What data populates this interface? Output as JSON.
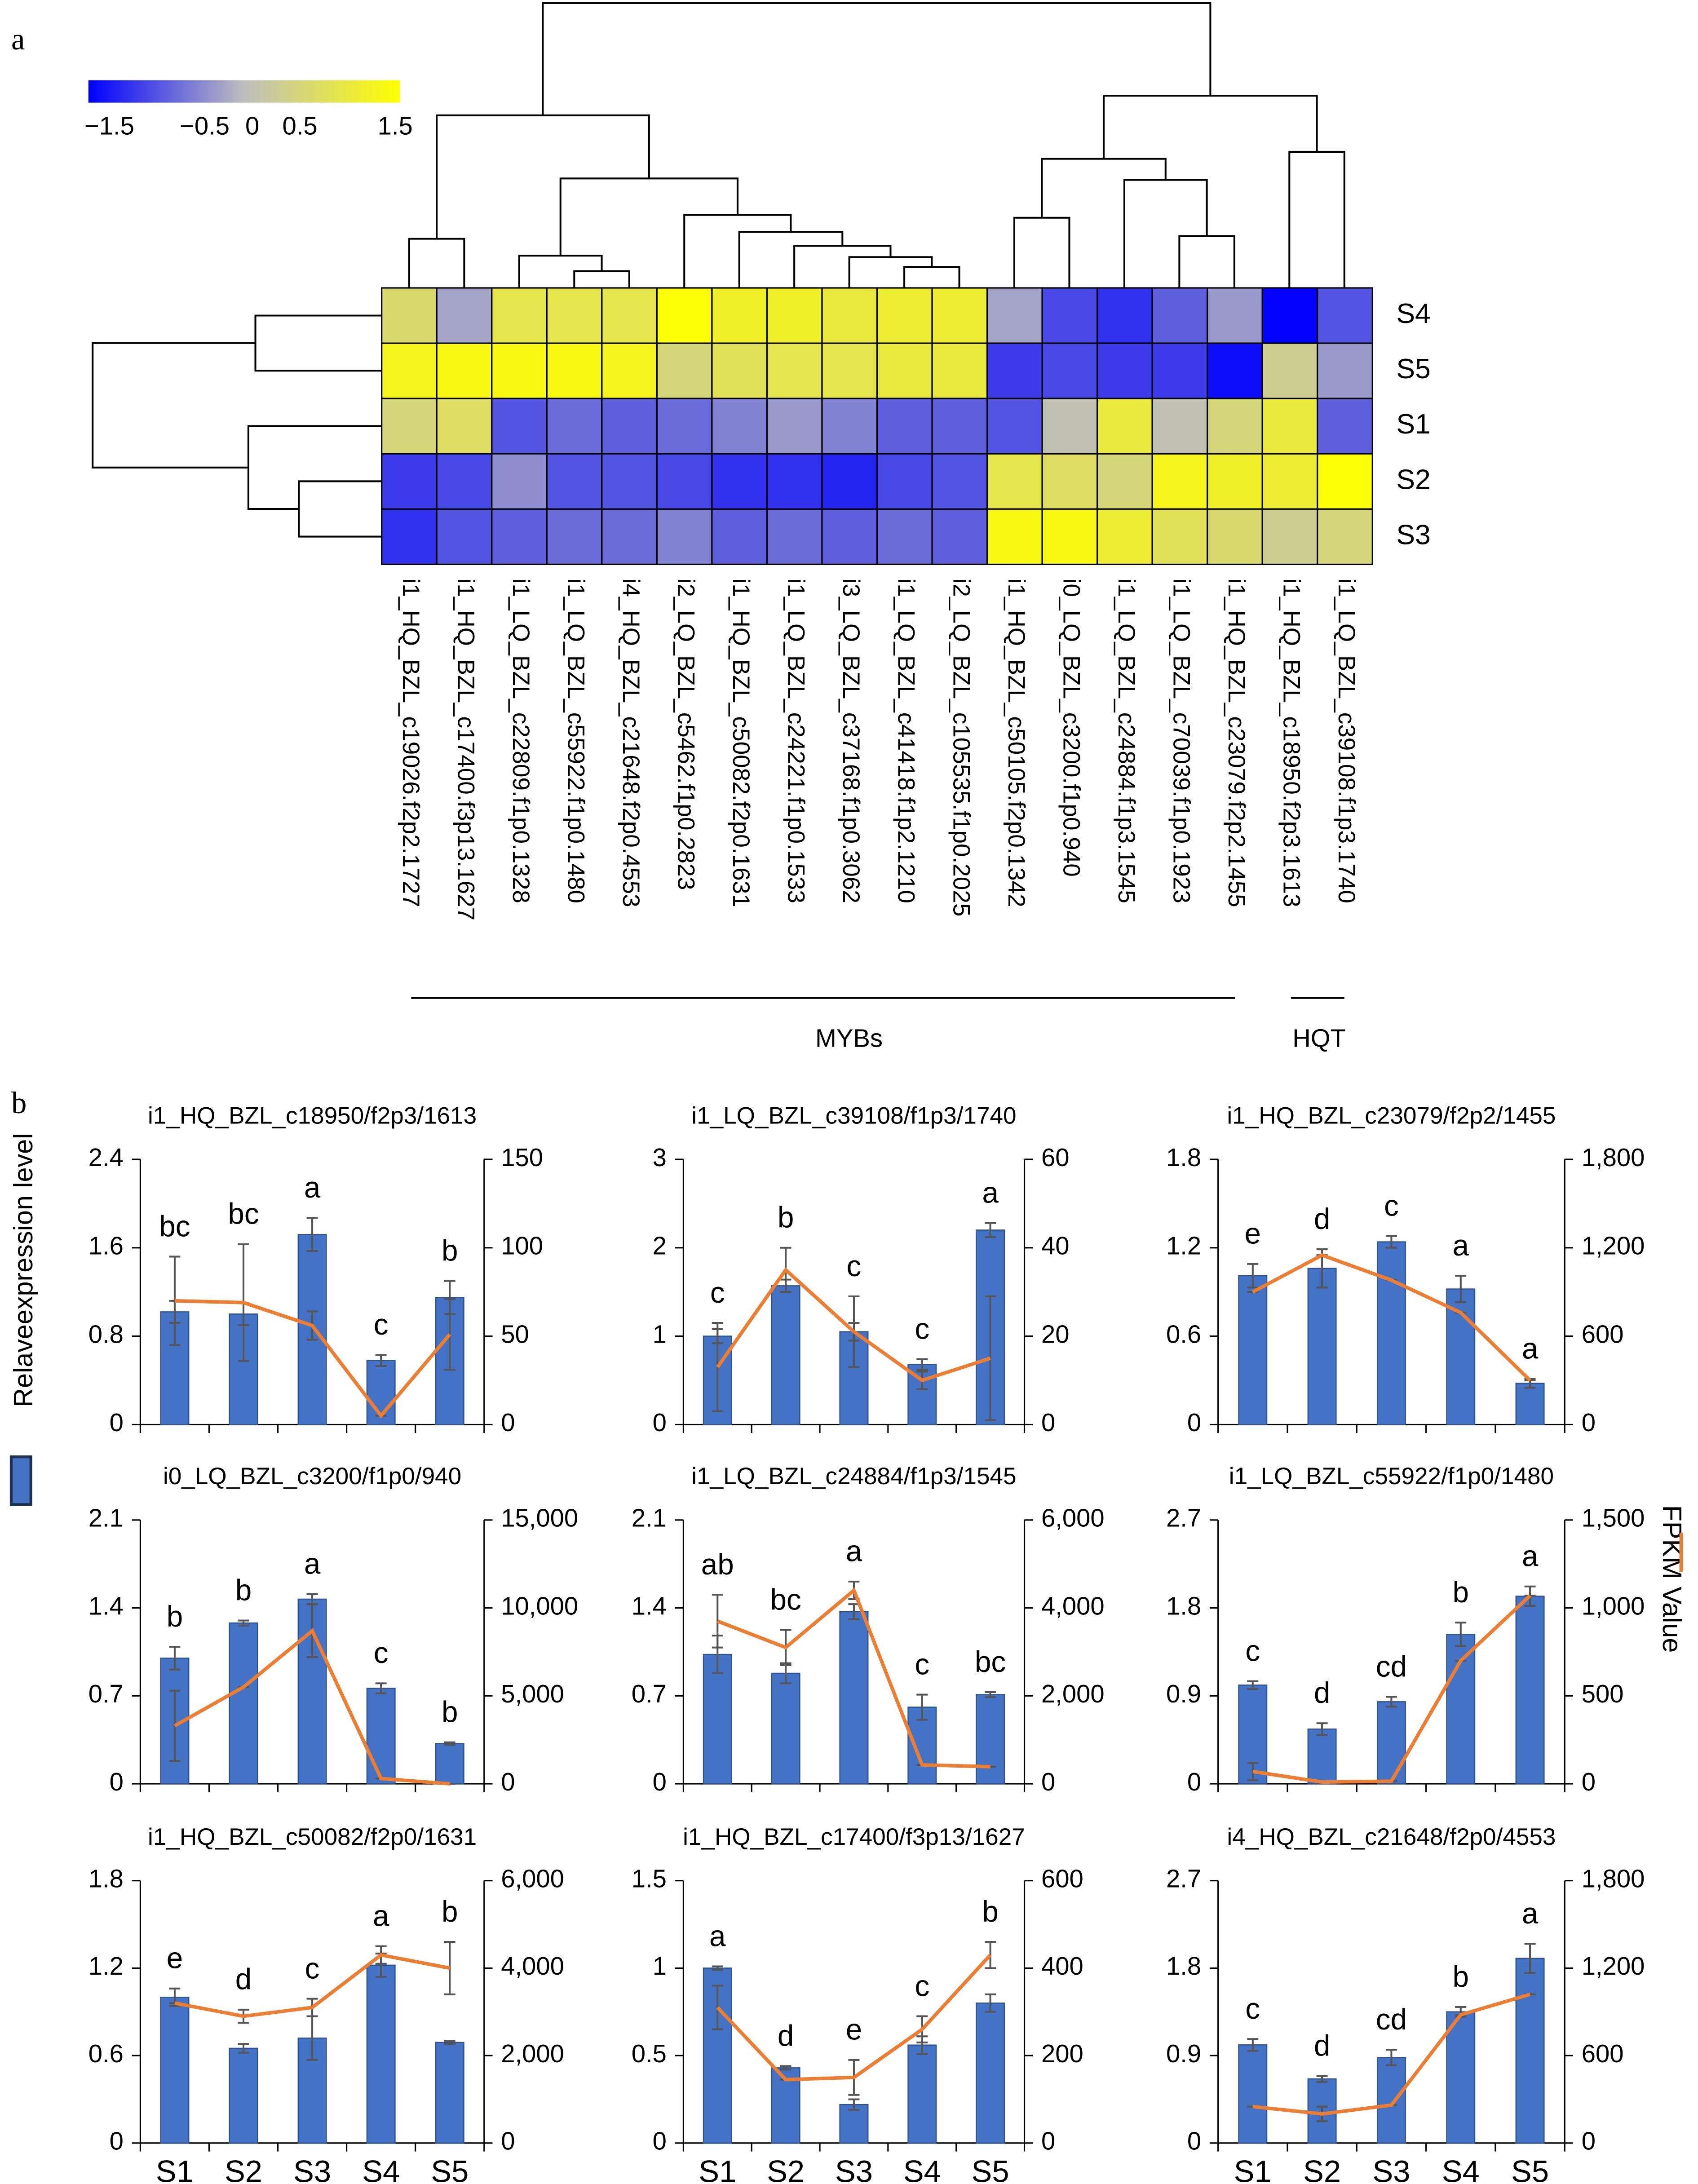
{
  "panel_a": {
    "label": "a",
    "colorbar": {
      "clim": [
        -1.72,
        1.55
      ],
      "colormap": [
        "#0000ff",
        "#bebebe",
        "#ffff00"
      ],
      "ticks": [
        {
          "value": -1.5,
          "label": "−1.5"
        },
        {
          "value": -0.5,
          "label": "−0.5"
        },
        0,
        0.5,
        1.5
      ]
    },
    "heatmap": {
      "rows": [
        "S4",
        "S5",
        "S1",
        "S2",
        "S3"
      ],
      "columns": [
        "i1_HQ_BZL_c19026.f2p2.1727",
        "i1_HQ_BZL_c17400.f3p13.1627",
        "i1_LQ_BZL_c22809.f1p0.1328",
        "i1_LQ_BZL_c55922.f1p0.1480",
        "i4_HQ_BZL_c21648.f2p0.4553",
        "i2_LQ_BZL_c5462.f1p0.2823",
        "i1_HQ_BZL_c50082.f2p0.1631",
        "i1_LQ_BZL_c24221.f1p0.1533",
        "i3_LQ_BZL_c37168.f1p0.3062",
        "i1_LQ_BZL_c41418.f1p2.1210",
        "i2_LQ_BZL_c105535.f1p0.2025",
        "i1_HQ_BZL_c50105.f2p0.1342",
        "i0_LQ_BZL_c3200.f1p0.940",
        "i1_LQ_BZL_c24884.f1p3.1545",
        "i1_LQ_BZL_c70039.f1p0.1923",
        "i1_HQ_BZL_c23079.f2p2.1455",
        "i1_HQ_BZL_c18950.f2p3.1613",
        "i1_LQ_BZL_c39108.f1p3.1740"
      ],
      "values": [
        [
          0.6,
          -0.3,
          0.9,
          0.9,
          0.9,
          1.5,
          1.2,
          1.2,
          1.0,
          1.1,
          1.1,
          -0.3,
          -1.1,
          -1.3,
          -0.9,
          -0.4,
          -1.7,
          -1.0
        ],
        [
          1.3,
          1.4,
          1.4,
          1.4,
          1.3,
          0.5,
          0.8,
          0.9,
          0.9,
          1.0,
          1.0,
          -1.2,
          -1.1,
          -1.2,
          -1.2,
          -1.6,
          0.3,
          -0.4
        ],
        [
          0.5,
          0.7,
          -1.0,
          -0.8,
          -0.9,
          -0.8,
          -0.6,
          -0.4,
          -0.6,
          -0.9,
          -0.9,
          -1.0,
          0.0,
          1.0,
          0.0,
          0.5,
          1.0,
          -0.9
        ],
        [
          -1.2,
          -1.1,
          -0.5,
          -1.0,
          -1.0,
          -1.1,
          -1.3,
          -1.3,
          -1.4,
          -1.1,
          -1.0,
          0.9,
          0.7,
          0.5,
          1.3,
          1.2,
          1.1,
          1.5
        ],
        [
          -1.3,
          -1.0,
          -0.9,
          -0.8,
          -0.8,
          -0.6,
          -0.9,
          -0.8,
          -0.9,
          -0.8,
          -0.9,
          1.4,
          1.4,
          1.1,
          0.8,
          0.6,
          0.3,
          0.5
        ]
      ]
    },
    "groups": [
      "MYBs",
      "HQT"
    ]
  },
  "panel_b": {
    "label": "b",
    "legend": [
      {
        "name": "Relaveexpression level",
        "color": "#4472c4"
      },
      {
        "name": "FPKM Value",
        "color": "#ed7d31"
      }
    ],
    "charts": [
      {
        "type": "bar-line",
        "title": "i1_HQ_BZL_c18950/f2p3/1613",
        "ylim": [
          0,
          2.4
        ],
        "yticks": [
          0,
          0.8,
          1.6,
          2.4
        ],
        "y2lim": [
          0,
          150
        ],
        "y2ticks": [
          0,
          50,
          100,
          150
        ],
        "bars": {
          "values": [
            1.02,
            1.0,
            1.72,
            0.58,
            1.15
          ],
          "errors": [
            0.1,
            0.1,
            0.15,
            0.05,
            0.15
          ]
        },
        "line": {
          "axis": "y2",
          "values": [
            70,
            69,
            56,
            5,
            51
          ],
          "errors": [
            25,
            33,
            8,
            0,
            20
          ]
        },
        "letters": [
          "bc",
          "bc",
          "a",
          "c",
          "b"
        ]
      },
      {
        "type": "bar-line",
        "title": "i1_LQ_BZL_c39108/f1p3/1740",
        "ylim": [
          0,
          3
        ],
        "yticks": [
          0,
          1,
          2,
          3
        ],
        "y2lim": [
          0,
          60
        ],
        "y2ticks": [
          0,
          20,
          40,
          60
        ],
        "bars": {
          "values": [
            1.0,
            1.57,
            1.05,
            0.68,
            2.2
          ],
          "errors": [
            0.08,
            0.07,
            0.1,
            0.06,
            0.08
          ]
        },
        "line": {
          "axis": "y2",
          "values": [
            13,
            35,
            21,
            10,
            15
          ],
          "errors": [
            10,
            5,
            8,
            2,
            14
          ]
        },
        "letters": [
          "c",
          "b",
          "c",
          "c",
          "a"
        ]
      },
      {
        "type": "bar-line",
        "title": "i1_HQ_BZL_c23079/f2p2/1455",
        "ylim": [
          0,
          1.8
        ],
        "yticks": [
          0,
          0.6,
          1.2,
          1.8
        ],
        "y2lim": [
          0,
          1800
        ],
        "y2ticks": [
          0,
          600,
          {
            "value": 1200,
            "label": "1,200"
          },
          {
            "value": 1800,
            "label": "1,800"
          }
        ],
        "bars": {
          "values": [
            1.01,
            1.06,
            1.24,
            0.92,
            0.28
          ],
          "errors": [
            0.08,
            0.13,
            0.04,
            0.09,
            0.03
          ]
        },
        "line": {
          "axis": "y2",
          "values": [
            900,
            1150,
            980,
            760,
            300
          ],
          "errors": [
            0,
            0,
            0,
            0,
            0
          ]
        },
        "letters": [
          "e",
          "d",
          "c",
          "a",
          "a"
        ]
      },
      {
        "type": "bar-line",
        "title": "i0_LQ_BZL_c3200/f1p0/940",
        "ylim": [
          0,
          2.1
        ],
        "yticks": [
          0,
          0.7,
          1.4,
          2.1
        ],
        "y2lim": [
          0,
          15000
        ],
        "y2ticks": [
          0,
          {
            "value": 5000,
            "label": "5,000"
          },
          {
            "value": 10000,
            "label": "10,000"
          },
          {
            "value": 15000,
            "label": "15,000"
          }
        ],
        "bars": {
          "values": [
            1.0,
            1.28,
            1.47,
            0.76,
            0.32
          ],
          "errors": [
            0.09,
            0.02,
            0.04,
            0.04,
            0.01
          ]
        },
        "line": {
          "axis": "y2",
          "values": [
            3300,
            5500,
            8700,
            300,
            0
          ],
          "errors": [
            2000,
            0,
            1500,
            0,
            0
          ]
        },
        "letters": [
          "b",
          "b",
          "a",
          "c",
          "b"
        ]
      },
      {
        "type": "bar-line",
        "title": "i1_LQ_BZL_c24884/f1p3/1545",
        "ylim": [
          0,
          2.1
        ],
        "yticks": [
          0,
          0.7,
          1.4,
          2.1
        ],
        "y2lim": [
          0,
          6000
        ],
        "y2ticks": [
          0,
          {
            "value": 2000,
            "label": "2,000"
          },
          {
            "value": 4000,
            "label": "4,000"
          },
          {
            "value": 6000,
            "label": "6,000"
          }
        ],
        "bars": {
          "values": [
            1.03,
            0.88,
            1.37,
            0.61,
            0.71
          ],
          "errors": [
            0.15,
            0.08,
            0.06,
            0.1,
            0.02
          ]
        },
        "line": {
          "axis": "y2",
          "values": [
            3700,
            3100,
            4400,
            430,
            390
          ],
          "errors": [
            600,
            400,
            200,
            0,
            0
          ]
        },
        "letters": [
          "ab",
          "bc",
          "a",
          "c",
          "bc"
        ]
      },
      {
        "type": "bar-line",
        "title": "i1_LQ_BZL_c55922/f1p0/1480",
        "ylim": [
          0,
          2.7
        ],
        "yticks": [
          0,
          0.9,
          1.8,
          2.7
        ],
        "y2lim": [
          0,
          1500
        ],
        "y2ticks": [
          0,
          500,
          {
            "value": 1000,
            "label": "1,000"
          },
          {
            "value": 1500,
            "label": "1,500"
          }
        ],
        "bars": {
          "values": [
            1.01,
            0.56,
            0.84,
            1.53,
            1.92
          ],
          "errors": [
            0.04,
            0.06,
            0.05,
            0.12,
            0.1
          ]
        },
        "line": {
          "axis": "y2",
          "values": [
            70,
            10,
            15,
            700,
            1070
          ],
          "errors": [
            50,
            0,
            0,
            0,
            0
          ]
        },
        "letters": [
          "c",
          "d",
          "cd",
          "b",
          "a"
        ]
      },
      {
        "type": "bar-line",
        "title": "i1_HQ_BZL_c50082/f2p0/1631",
        "ylim": [
          0,
          1.8
        ],
        "yticks": [
          0,
          0.6,
          1.2,
          1.8
        ],
        "y2lim": [
          0,
          6000
        ],
        "y2ticks": [
          0,
          {
            "value": 2000,
            "label": "2,000"
          },
          {
            "value": 4000,
            "label": "4,000"
          },
          {
            "value": 6000,
            "label": "6,000"
          }
        ],
        "bars": {
          "values": [
            1.0,
            0.65,
            0.72,
            1.22,
            0.69
          ],
          "errors": [
            0.06,
            0.03,
            0.15,
            0.08,
            0.01
          ]
        },
        "line": {
          "axis": "y2",
          "values": [
            3200,
            2900,
            3100,
            4300,
            4000
          ],
          "errors": [
            0,
            150,
            200,
            200,
            600
          ]
        },
        "letters": [
          "e",
          "d",
          "c",
          "a",
          "b"
        ],
        "categories": [
          "S1",
          "S2",
          "S3",
          "S4",
          "S5"
        ]
      },
      {
        "type": "bar-line",
        "title": "i1_HQ_BZL_c17400/f3p13/1627",
        "ylim": [
          0,
          1.5
        ],
        "yticks": [
          0,
          0.5,
          1,
          1.5
        ],
        "y2lim": [
          0,
          600
        ],
        "y2ticks": [
          0,
          200,
          400,
          600
        ],
        "bars": {
          "values": [
            1.0,
            0.43,
            0.22,
            0.56,
            0.8
          ],
          "errors": [
            0.01,
            0.01,
            0.03,
            0.05,
            0.05
          ]
        },
        "line": {
          "axis": "y2",
          "values": [
            310,
            145,
            150,
            260,
            430
          ],
          "errors": [
            50,
            0,
            40,
            30,
            30
          ]
        },
        "letters": [
          "a",
          "d",
          "e",
          "c",
          "b"
        ],
        "categories": [
          "S1",
          "S2",
          "S3",
          "S4",
          "S5"
        ]
      },
      {
        "type": "bar-line",
        "title": "i4_HQ_BZL_c21648/f2p0/4553",
        "ylim": [
          0,
          2.7
        ],
        "yticks": [
          0,
          0.9,
          1.8,
          2.7
        ],
        "y2lim": [
          0,
          1800
        ],
        "y2ticks": [
          0,
          600,
          {
            "value": 1200,
            "label": "1,200"
          },
          {
            "value": 1800,
            "label": "1,800"
          }
        ],
        "bars": {
          "values": [
            1.01,
            0.66,
            0.88,
            1.35,
            1.9
          ],
          "errors": [
            0.06,
            0.03,
            0.08,
            0.05,
            0.15
          ]
        },
        "line": {
          "axis": "y2",
          "values": [
            250,
            200,
            260,
            880,
            1020
          ],
          "errors": [
            0,
            50,
            0,
            0,
            0
          ]
        },
        "letters": [
          "c",
          "d",
          "cd",
          "b",
          "a"
        ],
        "categories": [
          "S1",
          "S2",
          "S3",
          "S4",
          "S5"
        ]
      }
    ]
  }
}
